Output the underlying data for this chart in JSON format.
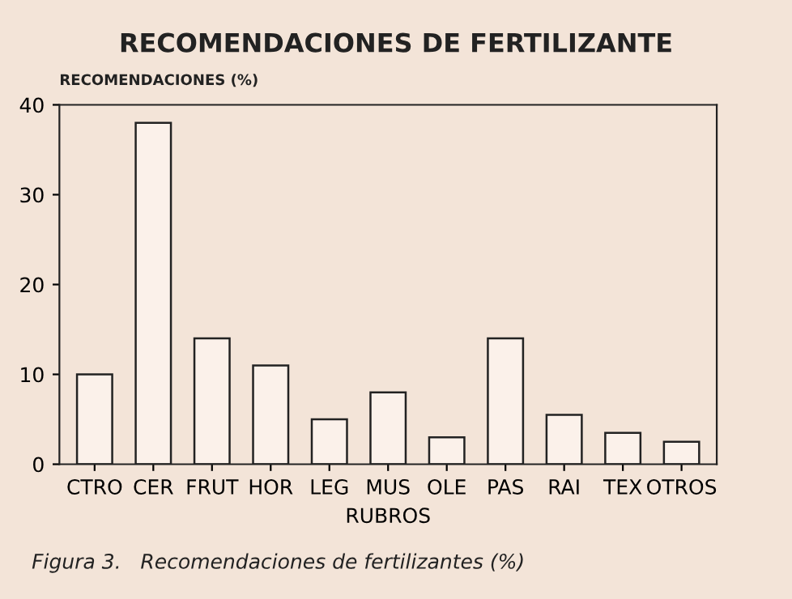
{
  "chart_data": {
    "type": "bar",
    "title": "RECOMENDACIONES DE FERTILIZANTE",
    "ylabel": "RECOMENDACIONES (%)",
    "xlabel": "RUBROS",
    "categories": [
      "CTRO",
      "CER",
      "FRUT",
      "HOR",
      "LEG",
      "MUS",
      "OLE",
      "PAS",
      "RAI",
      "TEX",
      "OTROS"
    ],
    "values": [
      10,
      38,
      14,
      11,
      5,
      8,
      3,
      14,
      5.5,
      3.5,
      2.5
    ],
    "color": "#fbf1ea",
    "ylim": [
      0,
      40
    ],
    "yticks": [
      0,
      10,
      20,
      30,
      40
    ],
    "grid": false,
    "annotations": [
      "Figura 3.   Recomendaciones de fertilizantes (%)"
    ]
  }
}
